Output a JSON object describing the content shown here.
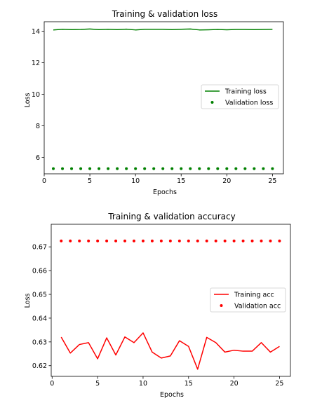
{
  "chart_data": [
    {
      "type": "line",
      "title": "Training & validation loss",
      "xlabel": "Epochs",
      "ylabel": "Loss",
      "xlim": [
        0,
        26.2
      ],
      "ylim": [
        4.95,
        14.6
      ],
      "xticks": [
        0,
        5,
        10,
        15,
        20,
        25
      ],
      "yticks": [
        6,
        8,
        10,
        12,
        14
      ],
      "ytick_format": "int",
      "grid": false,
      "legend_position": "center-right",
      "x": [
        1,
        2,
        3,
        4,
        5,
        6,
        7,
        8,
        9,
        10,
        11,
        12,
        13,
        14,
        15,
        16,
        17,
        18,
        19,
        20,
        21,
        22,
        23,
        24,
        25
      ],
      "series": [
        {
          "name": "Training loss",
          "style": "line",
          "color": "#008000",
          "values": [
            14.08,
            14.12,
            14.1,
            14.11,
            14.14,
            14.1,
            14.12,
            14.1,
            14.13,
            14.08,
            14.12,
            14.12,
            14.12,
            14.1,
            14.12,
            14.14,
            14.08,
            14.09,
            14.11,
            14.09,
            14.11,
            14.11,
            14.1,
            14.11,
            14.12
          ]
        },
        {
          "name": "Validation loss",
          "style": "dots",
          "color": "#008000",
          "values": [
            5.28,
            5.28,
            5.28,
            5.28,
            5.28,
            5.28,
            5.28,
            5.28,
            5.28,
            5.28,
            5.28,
            5.28,
            5.28,
            5.28,
            5.28,
            5.28,
            5.28,
            5.28,
            5.28,
            5.28,
            5.28,
            5.28,
            5.28,
            5.28,
            5.28
          ]
        }
      ]
    },
    {
      "type": "line",
      "title": "Training & validation accuracy",
      "xlabel": "Epochs",
      "ylabel": "Loss",
      "xlim": [
        -0.1,
        26.2
      ],
      "ylim": [
        0.6155,
        0.6795
      ],
      "xticks": [
        0,
        5,
        10,
        15,
        20,
        25
      ],
      "yticks": [
        0.62,
        0.63,
        0.64,
        0.65,
        0.66,
        0.67
      ],
      "ytick_format": "2dp",
      "grid": false,
      "legend_position": "center-right",
      "x": [
        1,
        2,
        3,
        4,
        5,
        6,
        7,
        8,
        9,
        10,
        11,
        12,
        13,
        14,
        15,
        16,
        17,
        18,
        19,
        20,
        21,
        22,
        23,
        24,
        25
      ],
      "series": [
        {
          "name": "Training acc",
          "style": "line",
          "color": "#ff0000",
          "values": [
            0.632,
            0.6253,
            0.6289,
            0.6297,
            0.6229,
            0.6317,
            0.6245,
            0.6321,
            0.6297,
            0.6338,
            0.6257,
            0.6232,
            0.6241,
            0.6305,
            0.6281,
            0.6185,
            0.6319,
            0.6297,
            0.6257,
            0.6265,
            0.6261,
            0.6261,
            0.6297,
            0.6257,
            0.6281
          ]
        },
        {
          "name": "Validation acc",
          "style": "dots",
          "color": "#ff0000",
          "values": [
            0.6725,
            0.6725,
            0.6725,
            0.6725,
            0.6725,
            0.6725,
            0.6725,
            0.6725,
            0.6725,
            0.6725,
            0.6725,
            0.6725,
            0.6725,
            0.6725,
            0.6725,
            0.6725,
            0.6725,
            0.6725,
            0.6725,
            0.6725,
            0.6725,
            0.6725,
            0.6725,
            0.6725,
            0.6725
          ]
        }
      ]
    }
  ]
}
